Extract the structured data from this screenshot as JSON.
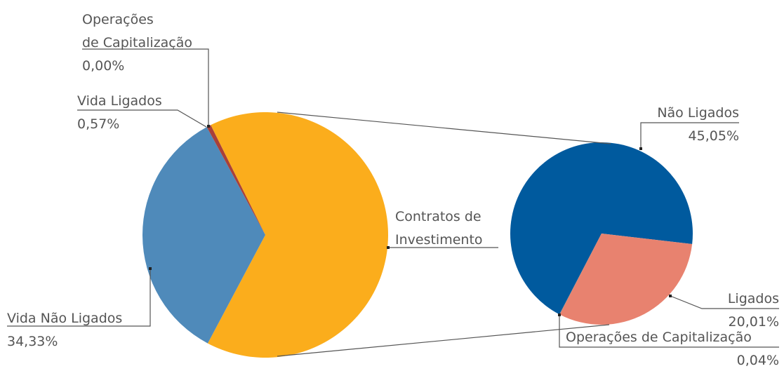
{
  "chart_data": [
    {
      "type": "pie",
      "categories": [
        "Contratos de\nInvestimento",
        "Vida Não Ligados",
        "Vida Ligados",
        "Operações\nde Capitalização"
      ],
      "values": [
        65.1,
        34.33,
        0.57,
        0.0
      ],
      "value_labels": [
        null,
        "34,33%",
        "0,57%",
        "0,00%"
      ],
      "colors": [
        "#fbad1c",
        "#4f8aba",
        "#a8403a",
        "#7a7a7a"
      ]
    },
    {
      "type": "pie",
      "categories": [
        "Não Ligados",
        "Ligados",
        "Operações de Capitalização"
      ],
      "values": [
        45.05,
        20.01,
        0.04
      ],
      "value_labels": [
        "45,05%",
        "20,01%",
        "0,04%"
      ],
      "colors": [
        "#005a9e",
        "#e8826f",
        "#7a7a7a"
      ]
    }
  ]
}
